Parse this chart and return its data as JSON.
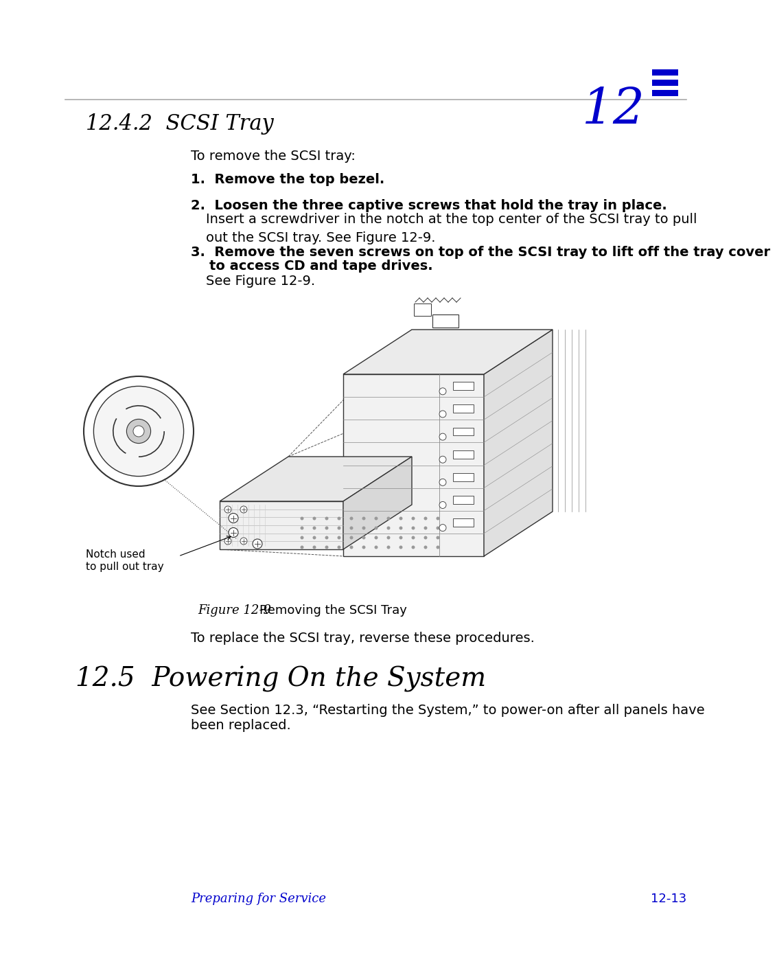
{
  "bg_color": "#ffffff",
  "chapter_num": "12",
  "chapter_icon_color": "#0000cc",
  "section_title_1": "12.4.2  SCSI Tray",
  "intro_text": "To remove the SCSI tray:",
  "step1_bold": "1.  Remove the top bezel.",
  "step2_bold": "2.  Loosen the three captive screws that hold the tray in place.",
  "step2_normal": "Insert a screwdriver in the notch at the top center of the SCSI tray to pull\nout the SCSI tray. See Figure 12-9.",
  "step3_bold_1": "3.  Remove the seven screws on top of the SCSI tray to lift off the tray cover",
  "step3_bold_2": "    to access CD and tape drives.",
  "step3_normal": "See Figure 12-9.",
  "figure_caption_italic": "Figure 12-9",
  "figure_caption_normal": "   Removing the SCSI Tray",
  "notch_label_1": "Notch used",
  "notch_label_2": "to pull out tray",
  "replace_text": "To replace the SCSI tray, reverse these procedures.",
  "section_title_2": "12.5  Powering On the System",
  "body_text_2a": "See Section 12.3, “Restarting the System,” to power-on after all panels have",
  "body_text_2b": "been replaced.",
  "footer_left": "Preparing for Service",
  "footer_right": "12-13",
  "footer_color": "#0000cc",
  "text_color": "#000000",
  "edge_color": "#333333"
}
